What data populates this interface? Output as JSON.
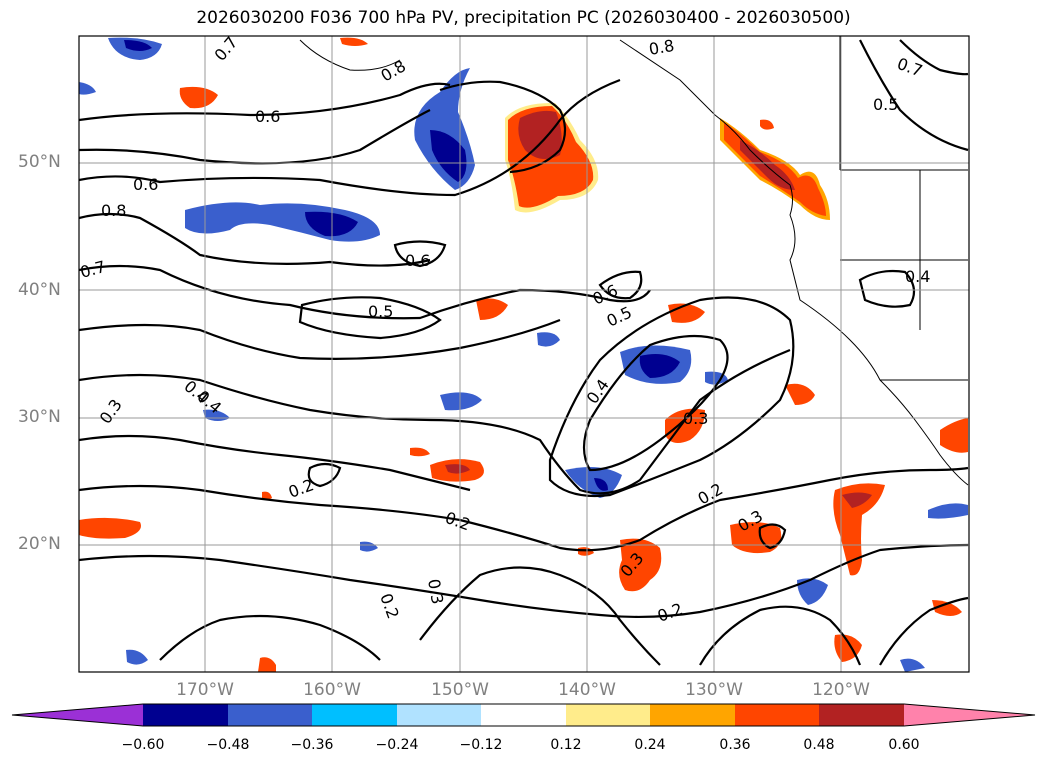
{
  "title": "2026030200 F036 700 hPa PV, precipitation PC (2026030400 - 2026030500)",
  "map": {
    "lat_labels": [
      "50°N",
      "40°N",
      "30°N",
      "20°N"
    ],
    "lon_labels": [
      "170°W",
      "160°W",
      "150°W",
      "140°W",
      "130°W",
      "120°W"
    ],
    "contour_labels": [
      "0.7",
      "0.8",
      "0.6",
      "0.6",
      "0.8",
      "0.7",
      "0.6",
      "0.5",
      "0.6",
      "0.5",
      "0.4",
      "0.4",
      "0.3",
      "0.4",
      "0.3",
      "0.2",
      "0.2",
      "0.2",
      "0.3",
      "0.3",
      "0.2",
      "0.3",
      "0.2",
      "0.4",
      "0.5",
      "0.7",
      "0.8"
    ]
  },
  "colorbar": {
    "ticks": [
      "−0.60",
      "−0.48",
      "−0.36",
      "−0.24",
      "−0.12",
      "0.12",
      "0.24",
      "0.36",
      "0.48",
      "0.60"
    ],
    "colors": [
      "#9b30d6",
      "#000090",
      "#3a5fcd",
      "#00bfff",
      "#b0e2ff",
      "#ffffff",
      "#ffec8b",
      "#ffa500",
      "#ff4500",
      "#b22222",
      "#ff82ab"
    ]
  }
}
